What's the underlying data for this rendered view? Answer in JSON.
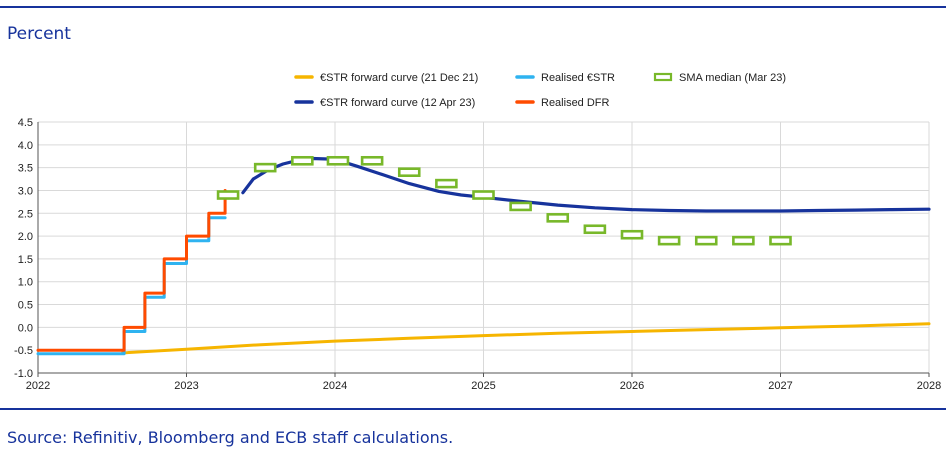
{
  "header": {
    "unit_label": "Percent"
  },
  "footer": {
    "source": "Source: Refinitiv, Bloomberg and ECB staff calculations."
  },
  "chart_data": {
    "type": "line",
    "title": "",
    "xlabel": "",
    "ylabel": "Percent",
    "xlim": [
      2022,
      2028
    ],
    "ylim": [
      -1.0,
      4.5
    ],
    "x_ticks": [
      "2022",
      "2023",
      "2024",
      "2025",
      "2026",
      "2027",
      "2028"
    ],
    "y_ticks": [
      "-1.0",
      "-0.5",
      "0.0",
      "0.5",
      "1.0",
      "1.5",
      "2.0",
      "2.5",
      "3.0",
      "3.5",
      "4.0",
      "4.5"
    ],
    "grid": true,
    "legend_position": "top",
    "legend": [
      {
        "name": "€STR forward curve (21 Dec 21)",
        "color": "#f6b500",
        "style": "line"
      },
      {
        "name": "Realised €STR",
        "color": "#2fb3f0",
        "style": "line"
      },
      {
        "name": "SMA median (Mar 23)",
        "color": "#78b82a",
        "style": "dash"
      },
      {
        "name": "€STR forward curve (12 Apr 23)",
        "color": "#17339c",
        "style": "line"
      },
      {
        "name": "Realised DFR",
        "color": "#ff4b00",
        "style": "line"
      }
    ],
    "series": [
      {
        "name": "€STR forward curve (21 Dec 21)",
        "color": "#f6b500",
        "x": [
          2022.57,
          2023.0,
          2023.5,
          2024.0,
          2024.5,
          2025.0,
          2025.5,
          2026.0,
          2026.5,
          2027.0,
          2027.5,
          2028.0
        ],
        "y": [
          -0.56,
          -0.48,
          -0.38,
          -0.3,
          -0.24,
          -0.18,
          -0.13,
          -0.09,
          -0.05,
          -0.01,
          0.03,
          0.08
        ]
      },
      {
        "name": "Realised €STR",
        "color": "#2fb3f0",
        "x": [
          2022.0,
          2022.58,
          2022.58,
          2022.72,
          2022.72,
          2022.85,
          2022.85,
          2023.0,
          2023.0,
          2023.15,
          2023.15,
          2023.26
        ],
        "y": [
          -0.58,
          -0.58,
          -0.09,
          -0.09,
          0.66,
          0.66,
          1.4,
          1.4,
          1.9,
          1.9,
          2.4,
          2.4
        ]
      },
      {
        "name": "Realised DFR",
        "color": "#ff4b00",
        "x": [
          2022.0,
          2022.58,
          2022.58,
          2022.72,
          2022.72,
          2022.85,
          2022.85,
          2023.0,
          2023.0,
          2023.15,
          2023.15,
          2023.26,
          2023.26
        ],
        "y": [
          -0.5,
          -0.5,
          0.0,
          0.0,
          0.75,
          0.75,
          1.5,
          1.5,
          2.0,
          2.0,
          2.5,
          2.5,
          3.0
        ]
      },
      {
        "name": "€STR forward curve (12 Apr 23)",
        "color": "#17339c",
        "x": [
          2023.38,
          2023.45,
          2023.55,
          2023.65,
          2023.75,
          2023.85,
          2023.95,
          2024.05,
          2024.15,
          2024.3,
          2024.5,
          2024.7,
          2024.85,
          2025.0,
          2025.25,
          2025.5,
          2025.75,
          2026.0,
          2026.25,
          2026.5,
          2026.75,
          2027.0,
          2027.25,
          2027.5,
          2027.75,
          2028.0
        ],
        "y": [
          2.95,
          3.25,
          3.45,
          3.58,
          3.66,
          3.7,
          3.69,
          3.63,
          3.53,
          3.37,
          3.15,
          2.98,
          2.9,
          2.85,
          2.76,
          2.68,
          2.62,
          2.58,
          2.56,
          2.55,
          2.55,
          2.55,
          2.56,
          2.57,
          2.58,
          2.59
        ]
      },
      {
        "name": "SMA median (Mar 23)",
        "color": "#78b82a",
        "style": "dash",
        "x": [
          2023.28,
          2023.53,
          2023.78,
          2024.02,
          2024.25,
          2024.5,
          2024.75,
          2025.0,
          2025.25,
          2025.5,
          2025.75,
          2026.0,
          2026.25,
          2026.5,
          2026.75,
          2027.0
        ],
        "y": [
          2.9,
          3.5,
          3.65,
          3.65,
          3.65,
          3.4,
          3.15,
          2.9,
          2.65,
          2.4,
          2.15,
          2.03,
          1.9,
          1.9,
          1.9,
          1.9
        ]
      }
    ]
  }
}
